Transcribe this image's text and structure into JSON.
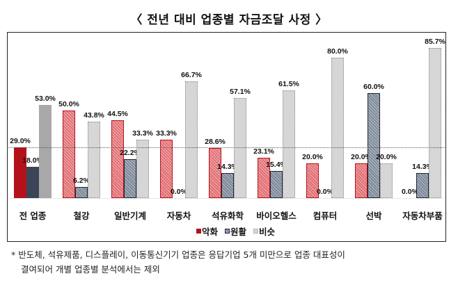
{
  "title": "〈 전년 대비 업종별 자금조달 사정 〉",
  "chart_data": {
    "type": "bar",
    "title": "전년 대비 업종별 자금조달 사정",
    "xlabel": "",
    "ylabel": "",
    "ylim": [
      0,
      100
    ],
    "grid": false,
    "legend_position": "bottom",
    "reference_line": {
      "value": 29.0,
      "style": "dotted",
      "meaning": "전 업종 악화 수준"
    },
    "categories": [
      "전 업종",
      "철강",
      "일반기계",
      "자동차",
      "석유화학",
      "바이오헬스",
      "컴퓨터",
      "선박",
      "자동차부품"
    ],
    "series": [
      {
        "name": "악화",
        "color": "#b3121b",
        "values": [
          29.0,
          50.0,
          44.5,
          33.3,
          28.6,
          23.1,
          20.0,
          20.0,
          0.0
        ]
      },
      {
        "name": "원활",
        "color": "#3a4658",
        "values": [
          18.0,
          6.2,
          22.2,
          0.0,
          14.3,
          15.4,
          0.0,
          60.0,
          14.3
        ]
      },
      {
        "name": "비슷",
        "color": "#a8a8a8",
        "values": [
          53.0,
          43.8,
          33.3,
          66.7,
          57.1,
          61.5,
          80.0,
          20.0,
          85.7
        ]
      }
    ]
  },
  "legend": [
    {
      "label": "악화",
      "icon": "red-square-icon"
    },
    {
      "label": "원활",
      "icon": "slate-square-icon"
    },
    {
      "label": "비슷",
      "icon": "gray-square-icon"
    }
  ],
  "footnote": {
    "line1": "* 반도체, 석유제품, 디스플레이, 이동통신기기 업종은 응답기업 5개 미만으로 업종 대표성이",
    "line2": "결여되어 개별 업종별 분석에서는 제외"
  }
}
